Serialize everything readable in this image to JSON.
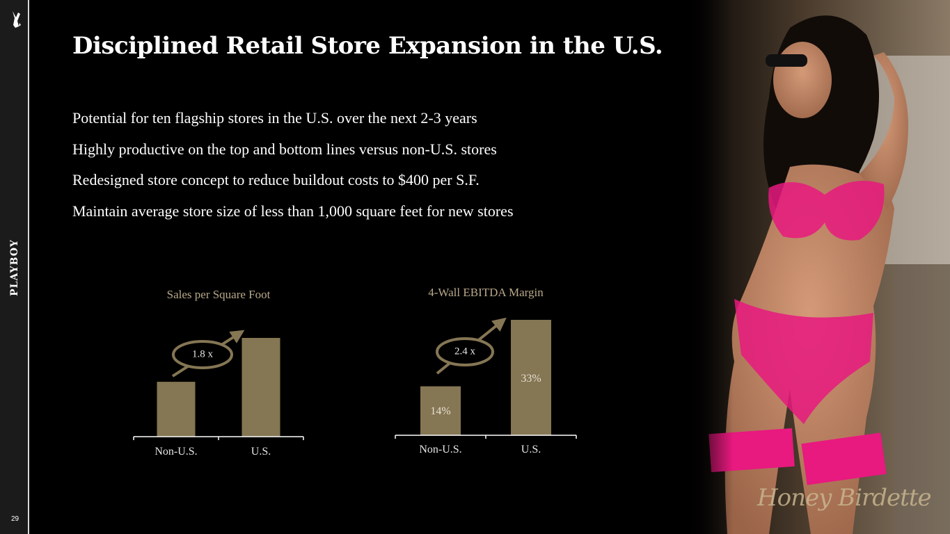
{
  "sidebar": {
    "brand": "PLAYBOY",
    "page_number": "29",
    "logo_icon": "bunny-icon"
  },
  "slide": {
    "title": "Disciplined Retail Store Expansion in the U.S.",
    "bullets": [
      "Potential for ten flagship stores in the U.S. over the next 2-3 years",
      "Highly productive on the top and bottom lines versus non-U.S. stores",
      "Redesigned store concept to reduce buildout costs to $400 per S.F.",
      "Maintain average store size of less than 1,000 square feet for new stores"
    ]
  },
  "photo": {
    "watermark": "Honey Birdette"
  },
  "colors": {
    "bar": "#857654",
    "chart_title": "#b8a98a",
    "accent_pink": "#e8197f"
  },
  "chart_data": [
    {
      "type": "bar",
      "title": "Sales per Square Foot",
      "categories": [
        "Non-U.S.",
        "U.S."
      ],
      "values": [
        1.0,
        1.8
      ],
      "data_labels": [
        "",
        ""
      ],
      "ratio_label": "1.8 x",
      "ylim": [
        0,
        1.8
      ],
      "grid": false
    },
    {
      "type": "bar",
      "title": "4-Wall EBITDA Margin",
      "categories": [
        "Non-U.S.",
        "U.S."
      ],
      "values": [
        14,
        33
      ],
      "data_labels": [
        "14%",
        "33%"
      ],
      "ratio_label": "2.4 x",
      "ylim": [
        0,
        33
      ],
      "grid": false
    }
  ]
}
